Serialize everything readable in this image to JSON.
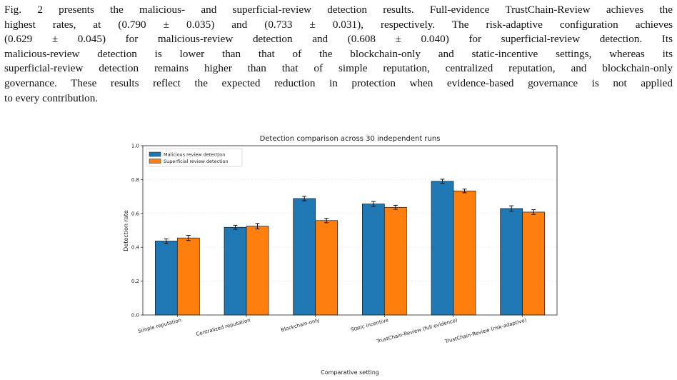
{
  "paragraph": {
    "lines": [
      "Fig. 2 presents the malicious- and superficial-review detection results. Full-evidence TrustChain-Review achieves the",
      "highest rates, at (0.790 ± 0.035) and (0.733 ± 0.031), respectively. The risk-adaptive configuration achieves",
      "(0.629 ± 0.045) for malicious-review detection and (0.608 ± 0.040) for superficial-review detection. Its",
      "malicious-review detection is lower than that of the blockchain-only and static-incentive settings, whereas its",
      "superficial-review detection remains higher than that of simple reputation, centralized reputation, and blockchain-only",
      "governance. These results reflect the expected reduction in protection when evidence-based governance is not applied",
      "to every contribution."
    ]
  },
  "chart_data": {
    "type": "bar",
    "title": "Detection comparison across 30 independent runs",
    "xlabel": "Comparative setting",
    "ylabel": "Detection rate",
    "ylim": [
      0.0,
      1.0
    ],
    "yticks": [
      "0.0",
      "0.2",
      "0.4",
      "0.6",
      "0.8",
      "1.0"
    ],
    "grid": "horizontal dotted",
    "legend_position": "top-left",
    "categories": [
      "Simple reputation",
      "Centralized reputation",
      "Blockchain-only",
      "Static incentive",
      "TrustChain-Review (full evidence)",
      "TrustChain-Review (risk-adaptive)"
    ],
    "series": [
      {
        "name": "Malicious review detection",
        "color": "#1f77b4",
        "values": [
          0.437,
          0.518,
          0.688,
          0.656,
          0.79,
          0.629
        ],
        "errors": [
          0.013,
          0.012,
          0.013,
          0.014,
          0.012,
          0.016
        ]
      },
      {
        "name": "Superficial review detection",
        "color": "#ff7f0e",
        "values": [
          0.455,
          0.525,
          0.558,
          0.636,
          0.733,
          0.608
        ],
        "errors": [
          0.015,
          0.016,
          0.013,
          0.012,
          0.011,
          0.014
        ]
      }
    ]
  }
}
